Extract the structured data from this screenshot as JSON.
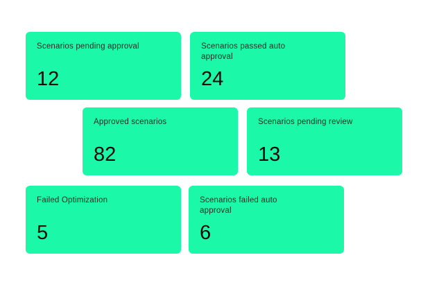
{
  "colors": {
    "card": "#1bf9a8"
  },
  "cards": [
    {
      "label": "Scenarios pending approval",
      "value": "12"
    },
    {
      "label": "Scenarios passed auto approval",
      "value": "24"
    },
    {
      "label": "Approved scenarios",
      "value": "82"
    },
    {
      "label": "Scenarios pending review",
      "value": "13"
    },
    {
      "label": "Failed Optimization",
      "value": "5"
    },
    {
      "label": "Scenarios failed auto approval",
      "value": "6"
    }
  ]
}
